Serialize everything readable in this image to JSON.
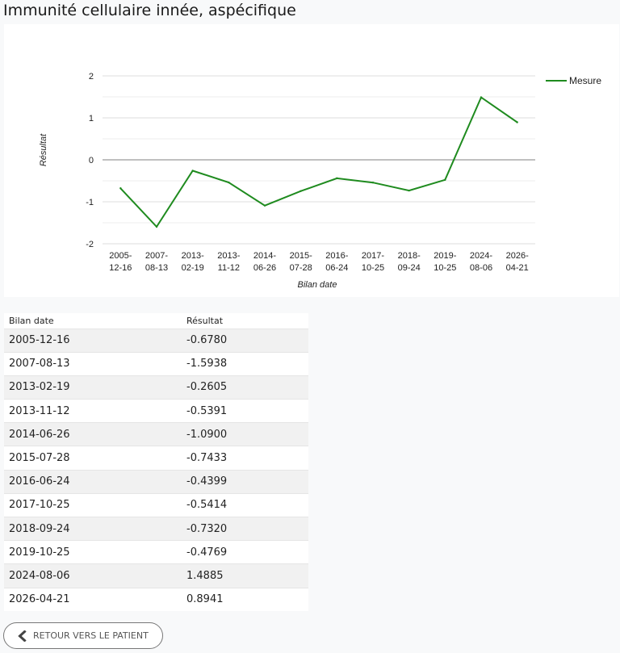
{
  "page": {
    "title": "Immunité cellulaire innée, aspécifique"
  },
  "chart_data": {
    "type": "line",
    "xlabel": "Bilan date",
    "ylabel": "Résultat",
    "ylim": [
      -2,
      2
    ],
    "yticks": [
      -2,
      -1,
      0,
      1,
      2
    ],
    "grid": true,
    "legend_position": "top-right",
    "categories": [
      "2005-12-16",
      "2007-08-13",
      "2013-02-19",
      "2013-11-12",
      "2014-06-26",
      "2015-07-28",
      "2016-06-24",
      "2017-10-25",
      "2018-09-24",
      "2019-10-25",
      "2024-08-06",
      "2026-04-21"
    ],
    "series": [
      {
        "name": "Mesure",
        "color": "#1f8b1f",
        "values": [
          -0.678,
          -1.5938,
          -0.2605,
          -0.5391,
          -1.09,
          -0.7433,
          -0.4399,
          -0.5414,
          -0.732,
          -0.4769,
          1.4885,
          0.8941
        ]
      }
    ]
  },
  "table": {
    "headers": [
      "Bilan date",
      "Résultat"
    ],
    "rows": [
      [
        "2005-12-16",
        "-0.6780"
      ],
      [
        "2007-08-13",
        "-1.5938"
      ],
      [
        "2013-02-19",
        "-0.2605"
      ],
      [
        "2013-11-12",
        "-0.5391"
      ],
      [
        "2014-06-26",
        "-1.0900"
      ],
      [
        "2015-07-28",
        "-0.7433"
      ],
      [
        "2016-06-24",
        "-0.4399"
      ],
      [
        "2017-10-25",
        "-0.5414"
      ],
      [
        "2018-09-24",
        "-0.7320"
      ],
      [
        "2019-10-25",
        "-0.4769"
      ],
      [
        "2024-08-06",
        "1.4885"
      ],
      [
        "2026-04-21",
        "0.8941"
      ]
    ]
  },
  "back_button": {
    "label": "RETOUR VERS LE PATIENT",
    "icon": "chevron-left-icon"
  }
}
